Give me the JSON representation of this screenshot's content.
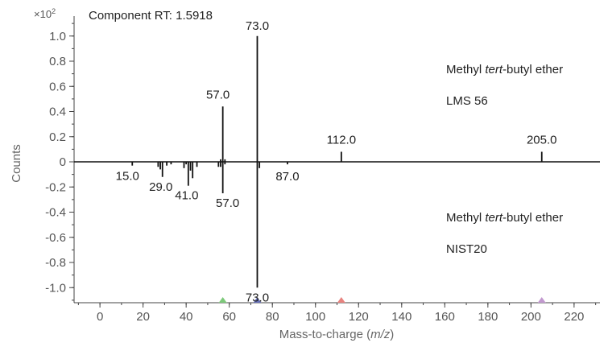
{
  "chart_data": {
    "type": "bar",
    "title": "Component RT: 1.5918",
    "xlabel_prefix": "Mass-to-charge (",
    "xlabel_italic": "m/z",
    "xlabel_suffix": ")",
    "ylabel": "Counts",
    "y_scale_factor": "×10",
    "y_scale_exponent": "2",
    "xlim": [
      -12,
      232
    ],
    "ylim": [
      -1.12,
      1.12
    ],
    "x_ticks": [
      0,
      20,
      40,
      60,
      80,
      100,
      120,
      140,
      160,
      180,
      200,
      220
    ],
    "y_ticks": [
      {
        "value": 1.0,
        "label": "1.0"
      },
      {
        "value": 0.8,
        "label": "0.8"
      },
      {
        "value": 0.6,
        "label": "0.6"
      },
      {
        "value": 0.4,
        "label": "0.4"
      },
      {
        "value": 0.2,
        "label": "0.2"
      },
      {
        "value": 0.0,
        "label": "0"
      },
      {
        "value": -0.2,
        "label": "-0.2"
      },
      {
        "value": -0.4,
        "label": "-0.4"
      },
      {
        "value": -0.6,
        "label": "-0.6"
      },
      {
        "value": -0.8,
        "label": "-0.8"
      },
      {
        "value": -1.0,
        "label": "-1.0"
      }
    ],
    "grid": false,
    "series": [
      {
        "compound_prefix": "Methyl ",
        "compound_italic": "tert",
        "compound_suffix": "-butyl ether",
        "library": "LMS 56",
        "direction": "up",
        "peaks": [
          {
            "mz": 57.0,
            "y": 0.44,
            "label": "57.0"
          },
          {
            "mz": 73.0,
            "y": 1.0,
            "label": "73.0"
          },
          {
            "mz": 112.0,
            "y": 0.08,
            "label": "112.0"
          },
          {
            "mz": 205.0,
            "y": 0.08,
            "label": "205.0"
          },
          {
            "mz": 56.0,
            "y": 0.02,
            "label": ""
          },
          {
            "mz": 58.0,
            "y": 0.02,
            "label": ""
          }
        ]
      },
      {
        "compound_prefix": "Methyl ",
        "compound_italic": "tert",
        "compound_suffix": "-butyl ether",
        "library": "NIST20",
        "direction": "down",
        "peaks": [
          {
            "mz": 15.0,
            "y": -0.03,
            "label": "15.0"
          },
          {
            "mz": 27.0,
            "y": -0.04,
            "label": ""
          },
          {
            "mz": 28.0,
            "y": -0.06,
            "label": ""
          },
          {
            "mz": 29.0,
            "y": -0.12,
            "label": "29.0"
          },
          {
            "mz": 31.0,
            "y": -0.03,
            "label": ""
          },
          {
            "mz": 33.0,
            "y": -0.02,
            "label": ""
          },
          {
            "mz": 39.0,
            "y": -0.05,
            "label": ""
          },
          {
            "mz": 40.0,
            "y": -0.02,
            "label": ""
          },
          {
            "mz": 41.0,
            "y": -0.19,
            "label": "41.0"
          },
          {
            "mz": 42.0,
            "y": -0.07,
            "label": ""
          },
          {
            "mz": 43.0,
            "y": -0.13,
            "label": ""
          },
          {
            "mz": 45.0,
            "y": -0.04,
            "label": ""
          },
          {
            "mz": 55.0,
            "y": -0.04,
            "label": ""
          },
          {
            "mz": 56.0,
            "y": -0.04,
            "label": ""
          },
          {
            "mz": 57.0,
            "y": -0.25,
            "label": "57.0"
          },
          {
            "mz": 58.0,
            "y": -0.02,
            "label": ""
          },
          {
            "mz": 73.0,
            "y": -1.0,
            "label": "73.0"
          },
          {
            "mz": 74.0,
            "y": -0.05,
            "label": ""
          },
          {
            "mz": 87.0,
            "y": -0.02,
            "label": "87.0"
          }
        ]
      }
    ],
    "markers": [
      {
        "mz": 57,
        "color": "#7dc97a"
      },
      {
        "mz": 73,
        "color": "#6670b8"
      },
      {
        "mz": 112,
        "color": "#e8837f"
      },
      {
        "mz": 205,
        "color": "#c299cf"
      }
    ]
  }
}
